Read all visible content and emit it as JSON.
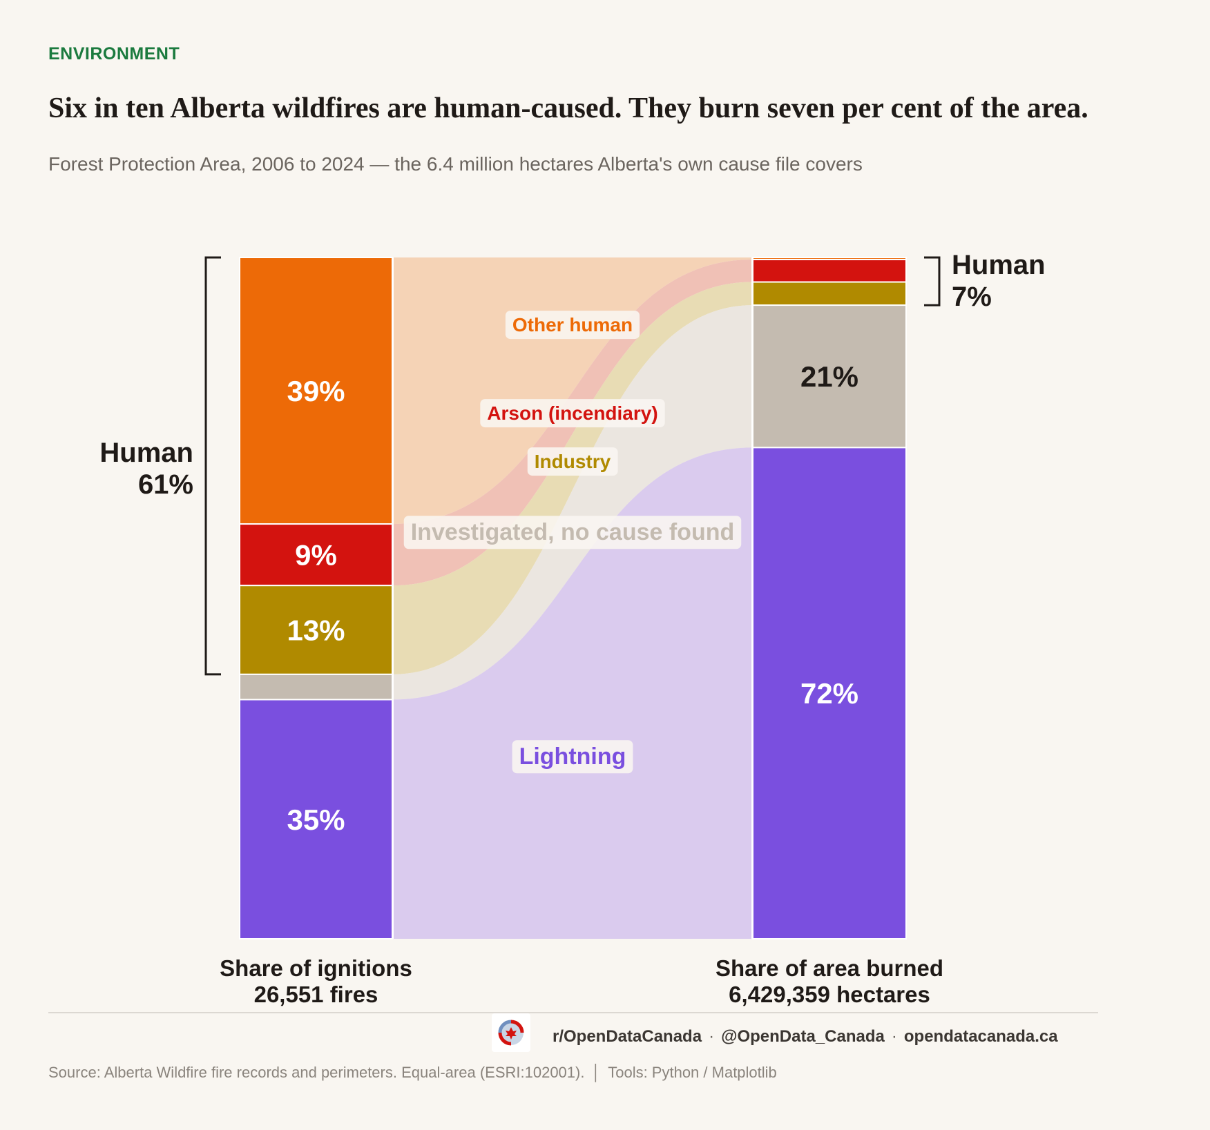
{
  "header": {
    "kicker": "ENVIRONMENT",
    "title": "Six in ten Alberta wildfires are human-caused. They burn seven per cent of the area.",
    "subtitle": "Forest Protection Area, 2006 to 2024 — the 6.4 million hectares Alberta's own cause file covers"
  },
  "chart_data": {
    "type": "bar",
    "subtype": "stacked-100-with-flows",
    "bars": [
      {
        "label": "Share of ignitions",
        "total_label": "26,551 fires",
        "values": {
          "other_human": 39,
          "arson": 9,
          "industry": 13,
          "no_cause": 3.7,
          "lightning": 35
        },
        "labels": {
          "other_human": "39%",
          "arson": "9%",
          "industry": "13%",
          "lightning": "35%"
        },
        "bracket": {
          "name": "Human",
          "value": "61%"
        }
      },
      {
        "label": "Share of area burned",
        "total_label": "6,429,359 hectares",
        "values": {
          "other_human": 0.3,
          "arson": 3.3,
          "industry": 3.4,
          "no_cause": 20.9,
          "lightning": 72.1
        },
        "labels": {
          "no_cause": "21%",
          "lightning": "72%"
        },
        "bracket": {
          "name": "Human",
          "value": "7%"
        }
      }
    ],
    "series": [
      {
        "key": "other_human",
        "name": "Other human",
        "color": "#ed6a07",
        "flow": "#f5d3b6",
        "text": "#ed6a07"
      },
      {
        "key": "arson",
        "name": "Arson (incendiary)",
        "color": "#d3130f",
        "flow": "#f0c1b6",
        "text": "#d3130f"
      },
      {
        "key": "industry",
        "name": "Industry",
        "color": "#b08a00",
        "flow": "#e8dcb4",
        "text": "#b08a00"
      },
      {
        "key": "no_cause",
        "name": "Investigated, no cause found",
        "color": "#c4bbb0",
        "flow": "#ebe6e0",
        "text": "#c4bbb0"
      },
      {
        "key": "lightning",
        "name": "Lightning",
        "color": "#7a4fdf",
        "flow": "#dacbee",
        "text": "#7a4fdf"
      }
    ],
    "ylim": [
      0,
      100
    ]
  },
  "footer": {
    "handles": [
      "r/OpenDataCanada",
      "@OpenData_Canada",
      "opendatacanada.ca"
    ],
    "source": "Source: Alberta Wildfire fire records and perimeters. Equal-area (ESRI:102001).",
    "tools": "Tools: Python / Matplotlib"
  }
}
